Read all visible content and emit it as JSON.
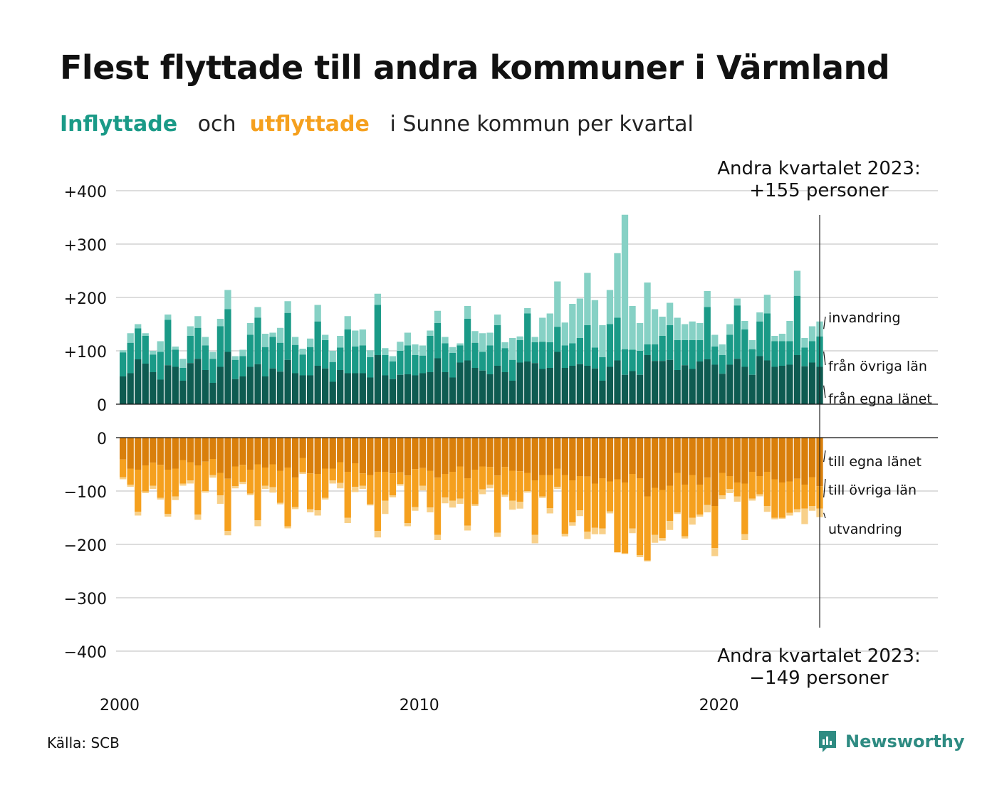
{
  "title": "Flest flyttade till andra kommuner i Värmland",
  "subtitle": {
    "part1": "Inflyttade",
    "part2": "och",
    "part3": "utflyttade",
    "part4": "i Sunne kommun per kvartal"
  },
  "source": "Källa: SCB",
  "brand": {
    "name": "Newsworthy",
    "icon": "newsworthy-logo-icon"
  },
  "colors": {
    "in_own": "#0e5b51",
    "in_other": "#1a9a87",
    "in_immig": "#86d1c5",
    "out_own": "#d97f0b",
    "out_other": "#f5a01e",
    "out_emig": "#f8d089",
    "grid": "#dddddd"
  },
  "chart_data": {
    "type": "bar",
    "stacked": true,
    "grid": true,
    "x_label_ticks": [
      "2000",
      "2010",
      "2020"
    ],
    "start": "2000 Q1",
    "period": "kvartal",
    "upper_ylim": [
      0,
      400
    ],
    "upper_ticks": [
      "+400",
      "+300",
      "+200",
      "+100",
      "0"
    ],
    "lower_ylim": [
      -400,
      0
    ],
    "lower_ticks": [
      "0",
      "−100",
      "−200",
      "−300",
      "−400"
    ],
    "inflow_series_labels": [
      "från egna länet",
      "från övriga län",
      "invandring"
    ],
    "outflow_series_labels": [
      "till egna länet",
      "till övriga län",
      "utvandring"
    ],
    "annotation_in": {
      "line1": "Andra kvartalet 2023:",
      "line2": "+155 personer"
    },
    "annotation_out": {
      "line1": "Andra kvartalet 2023:",
      "line2": "−149 personer"
    },
    "inflow_quarters": [
      [
        "2000 Q1",
        52,
        97,
        101
      ],
      [
        "2000 Q2",
        58,
        115,
        133
      ],
      [
        "2000 Q3",
        84,
        142,
        150
      ],
      [
        "2000 Q4",
        76,
        128,
        133
      ],
      [
        "2001 Q1",
        60,
        93,
        100
      ],
      [
        "2001 Q2",
        46,
        98,
        118
      ],
      [
        "2001 Q3",
        73,
        158,
        168
      ],
      [
        "2001 Q4",
        70,
        102,
        108
      ],
      [
        "2002 Q1",
        44,
        68,
        85
      ],
      [
        "2002 Q2",
        77,
        128,
        146
      ],
      [
        "2002 Q3",
        85,
        143,
        165
      ],
      [
        "2002 Q4",
        64,
        110,
        126
      ],
      [
        "2003 Q1",
        40,
        85,
        98
      ],
      [
        "2003 Q2",
        70,
        146,
        160
      ],
      [
        "2003 Q3",
        98,
        178,
        214
      ],
      [
        "2003 Q4",
        47,
        83,
        90
      ],
      [
        "2004 Q1",
        52,
        90,
        102
      ],
      [
        "2004 Q2",
        70,
        130,
        152
      ],
      [
        "2004 Q3",
        75,
        162,
        182
      ],
      [
        "2004 Q4",
        52,
        107,
        132
      ],
      [
        "2005 Q1",
        67,
        126,
        134
      ],
      [
        "2005 Q2",
        61,
        115,
        143
      ],
      [
        "2005 Q3",
        83,
        171,
        193
      ],
      [
        "2005 Q4",
        58,
        111,
        126
      ],
      [
        "2006 Q1",
        54,
        93,
        104
      ],
      [
        "2006 Q2",
        54,
        107,
        123
      ],
      [
        "2006 Q3",
        72,
        155,
        186
      ],
      [
        "2006 Q4",
        67,
        120,
        130
      ],
      [
        "2007 Q1",
        42,
        79,
        100
      ],
      [
        "2007 Q2",
        64,
        106,
        128
      ],
      [
        "2007 Q3",
        58,
        140,
        165
      ],
      [
        "2007 Q4",
        58,
        108,
        138
      ],
      [
        "2008 Q1",
        58,
        110,
        140
      ],
      [
        "2008 Q2",
        50,
        88,
        101
      ],
      [
        "2008 Q3",
        92,
        186,
        207
      ],
      [
        "2008 Q4",
        54,
        92,
        105
      ],
      [
        "2009 Q1",
        47,
        80,
        90
      ],
      [
        "2009 Q2",
        55,
        100,
        117
      ],
      [
        "2009 Q3",
        56,
        110,
        134
      ],
      [
        "2009 Q4",
        54,
        92,
        112
      ],
      [
        "2010 Q1",
        58,
        91,
        110
      ],
      [
        "2010 Q2",
        60,
        128,
        138
      ],
      [
        "2010 Q3",
        86,
        152,
        175
      ],
      [
        "2010 Q4",
        60,
        114,
        126
      ],
      [
        "2011 Q1",
        50,
        96,
        107
      ],
      [
        "2011 Q2",
        78,
        110,
        114
      ],
      [
        "2011 Q3",
        82,
        160,
        184
      ],
      [
        "2011 Q4",
        68,
        115,
        137
      ],
      [
        "2012 Q1",
        63,
        98,
        133
      ],
      [
        "2012 Q2",
        56,
        110,
        134
      ],
      [
        "2012 Q3",
        72,
        148,
        168
      ],
      [
        "2012 Q4",
        60,
        105,
        116
      ],
      [
        "2013 Q1",
        44,
        83,
        124
      ],
      [
        "2013 Q2",
        78,
        120,
        127
      ],
      [
        "2013 Q3",
        80,
        170,
        180
      ],
      [
        "2013 Q4",
        77,
        116,
        126
      ],
      [
        "2014 Q1",
        66,
        117,
        162
      ],
      [
        "2014 Q2",
        68,
        116,
        170
      ],
      [
        "2014 Q3",
        98,
        145,
        230
      ],
      [
        "2014 Q4",
        68,
        110,
        153
      ],
      [
        "2015 Q1",
        72,
        114,
        188
      ],
      [
        "2015 Q2",
        75,
        124,
        198
      ],
      [
        "2015 Q3",
        72,
        148,
        246
      ],
      [
        "2015 Q4",
        67,
        106,
        195
      ],
      [
        "2016 Q1",
        44,
        88,
        148
      ],
      [
        "2016 Q2",
        70,
        150,
        214
      ],
      [
        "2016 Q3",
        82,
        162,
        283
      ],
      [
        "2016 Q4",
        55,
        103,
        355
      ],
      [
        "2017 Q1",
        62,
        102,
        184
      ],
      [
        "2017 Q2",
        55,
        100,
        152
      ],
      [
        "2017 Q3",
        92,
        112,
        228
      ],
      [
        "2017 Q4",
        81,
        112,
        178
      ],
      [
        "2018 Q1",
        81,
        128,
        164
      ],
      [
        "2018 Q2",
        83,
        148,
        190
      ],
      [
        "2018 Q3",
        64,
        120,
        162
      ],
      [
        "2018 Q4",
        73,
        120,
        150
      ],
      [
        "2019 Q1",
        66,
        120,
        155
      ],
      [
        "2019 Q2",
        80,
        120,
        152
      ],
      [
        "2019 Q3",
        84,
        182,
        212
      ],
      [
        "2019 Q4",
        74,
        108,
        130
      ],
      [
        "2020 Q1",
        57,
        92,
        112
      ],
      [
        "2020 Q2",
        74,
        130,
        150
      ],
      [
        "2020 Q3",
        85,
        185,
        198
      ],
      [
        "2020 Q4",
        70,
        140,
        156
      ],
      [
        "2021 Q1",
        55,
        103,
        120
      ],
      [
        "2021 Q2",
        90,
        155,
        172
      ],
      [
        "2021 Q3",
        82,
        170,
        205
      ],
      [
        "2021 Q4",
        70,
        118,
        128
      ],
      [
        "2022 Q1",
        72,
        118,
        132
      ],
      [
        "2022 Q2",
        74,
        118,
        156
      ],
      [
        "2022 Q3",
        92,
        203,
        250
      ],
      [
        "2022 Q4",
        71,
        106,
        124
      ],
      [
        "2023 Q1",
        78,
        118,
        146
      ],
      [
        "2023 Q2",
        70,
        127,
        155
      ]
    ],
    "outflow_quarters": [
      [
        "2000 Q1",
        -41,
        -74,
        -78
      ],
      [
        "2000 Q2",
        -58,
        -88,
        -92
      ],
      [
        "2000 Q3",
        -60,
        -139,
        -146
      ],
      [
        "2000 Q4",
        -52,
        -101,
        -104
      ],
      [
        "2001 Q1",
        -47,
        -90,
        -96
      ],
      [
        "2001 Q2",
        -51,
        -113,
        -116
      ],
      [
        "2001 Q3",
        -60,
        -143,
        -148
      ],
      [
        "2001 Q4",
        -58,
        -110,
        -117
      ],
      [
        "2002 Q1",
        -42,
        -86,
        -90
      ],
      [
        "2002 Q2",
        -46,
        -80,
        -86
      ],
      [
        "2002 Q3",
        -52,
        -144,
        -154
      ],
      [
        "2002 Q4",
        -45,
        -100,
        -103
      ],
      [
        "2003 Q1",
        -40,
        -70,
        -75
      ],
      [
        "2003 Q2",
        -66,
        -108,
        -124
      ],
      [
        "2003 Q3",
        -77,
        -175,
        -183
      ],
      [
        "2003 Q4",
        -54,
        -91,
        -95
      ],
      [
        "2004 Q1",
        -51,
        -83,
        -87
      ],
      [
        "2004 Q2",
        -60,
        -105,
        -108
      ],
      [
        "2004 Q3",
        -50,
        -155,
        -166
      ],
      [
        "2004 Q4",
        -56,
        -90,
        -96
      ],
      [
        "2005 Q1",
        -50,
        -93,
        -103
      ],
      [
        "2005 Q2",
        -62,
        -122,
        -125
      ],
      [
        "2005 Q3",
        -56,
        -166,
        -170
      ],
      [
        "2005 Q4",
        -75,
        -130,
        -134
      ],
      [
        "2006 Q1",
        -38,
        -65,
        -68
      ],
      [
        "2006 Q2",
        -67,
        -134,
        -140
      ],
      [
        "2006 Q3",
        -68,
        -136,
        -146
      ],
      [
        "2006 Q4",
        -58,
        -113,
        -116
      ],
      [
        "2007 Q1",
        -58,
        -80,
        -86
      ],
      [
        "2007 Q2",
        -46,
        -85,
        -95
      ],
      [
        "2007 Q3",
        -64,
        -150,
        -160
      ],
      [
        "2007 Q4",
        -48,
        -92,
        -102
      ],
      [
        "2008 Q1",
        -67,
        -90,
        -96
      ],
      [
        "2008 Q2",
        -70,
        -125,
        -127
      ],
      [
        "2008 Q3",
        -64,
        -175,
        -187
      ],
      [
        "2008 Q4",
        -64,
        -118,
        -143
      ],
      [
        "2009 Q1",
        -67,
        -108,
        -112
      ],
      [
        "2009 Q2",
        -65,
        -87,
        -90
      ],
      [
        "2009 Q3",
        -71,
        -160,
        -166
      ],
      [
        "2009 Q4",
        -59,
        -130,
        -137
      ],
      [
        "2010 Q1",
        -57,
        -90,
        -99
      ],
      [
        "2010 Q2",
        -62,
        -131,
        -140
      ],
      [
        "2010 Q3",
        -75,
        -182,
        -192
      ],
      [
        "2010 Q4",
        -68,
        -112,
        -123
      ],
      [
        "2011 Q1",
        -64,
        -118,
        -131
      ],
      [
        "2011 Q2",
        -54,
        -114,
        -124
      ],
      [
        "2011 Q3",
        -76,
        -165,
        -174
      ],
      [
        "2011 Q4",
        -60,
        -125,
        -128
      ],
      [
        "2012 Q1",
        -54,
        -97,
        -106
      ],
      [
        "2012 Q2",
        -55,
        -88,
        -95
      ],
      [
        "2012 Q3",
        -71,
        -178,
        -186
      ],
      [
        "2012 Q4",
        -55,
        -107,
        -111
      ],
      [
        "2013 Q1",
        -62,
        -118,
        -135
      ],
      [
        "2013 Q2",
        -63,
        -120,
        -133
      ],
      [
        "2013 Q3",
        -66,
        -100,
        -103
      ],
      [
        "2013 Q4",
        -80,
        -182,
        -198
      ],
      [
        "2014 Q1",
        -70,
        -110,
        -113
      ],
      [
        "2014 Q2",
        -70,
        -132,
        -142
      ],
      [
        "2014 Q3",
        -58,
        -92,
        -96
      ],
      [
        "2014 Q4",
        -70,
        -180,
        -185
      ],
      [
        "2015 Q1",
        -80,
        -159,
        -165
      ],
      [
        "2015 Q2",
        -72,
        -136,
        -147
      ],
      [
        "2015 Q3",
        -73,
        -176,
        -190
      ],
      [
        "2015 Q4",
        -86,
        -169,
        -181
      ],
      [
        "2016 Q1",
        -76,
        -170,
        -181
      ],
      [
        "2016 Q2",
        -82,
        -138,
        -142
      ],
      [
        "2016 Q3",
        -78,
        -215,
        -215
      ],
      [
        "2016 Q4",
        -84,
        -217,
        -218
      ],
      [
        "2017 Q1",
        -68,
        -170,
        -179
      ],
      [
        "2017 Q2",
        -76,
        -220,
        -224
      ],
      [
        "2017 Q3",
        -110,
        -230,
        -232
      ],
      [
        "2017 Q4",
        -94,
        -182,
        -197
      ],
      [
        "2018 Q1",
        -98,
        -188,
        -193
      ],
      [
        "2018 Q2",
        -90,
        -156,
        -173
      ],
      [
        "2018 Q3",
        -66,
        -140,
        -143
      ],
      [
        "2018 Q4",
        -88,
        -185,
        -189
      ],
      [
        "2019 Q1",
        -70,
        -150,
        -163
      ],
      [
        "2019 Q2",
        -88,
        -144,
        -148
      ],
      [
        "2019 Q3",
        -75,
        -126,
        -140
      ],
      [
        "2019 Q4",
        -128,
        -207,
        -222
      ],
      [
        "2020 Q1",
        -66,
        -108,
        -115
      ],
      [
        "2020 Q2",
        -72,
        -96,
        -104
      ],
      [
        "2020 Q3",
        -84,
        -110,
        -120
      ],
      [
        "2020 Q4",
        -86,
        -181,
        -192
      ],
      [
        "2021 Q1",
        -64,
        -114,
        -118
      ],
      [
        "2021 Q2",
        -72,
        -106,
        -110
      ],
      [
        "2021 Q3",
        -64,
        -128,
        -139
      ],
      [
        "2021 Q4",
        -78,
        -150,
        -153
      ],
      [
        "2022 Q1",
        -84,
        -150,
        -152
      ],
      [
        "2022 Q2",
        -82,
        -141,
        -146
      ],
      [
        "2022 Q3",
        -77,
        -134,
        -140
      ],
      [
        "2022 Q4",
        -88,
        -133,
        -162
      ],
      [
        "2023 Q1",
        -74,
        -128,
        -137
      ],
      [
        "2023 Q2",
        -91,
        -133,
        -149
      ]
    ]
  }
}
